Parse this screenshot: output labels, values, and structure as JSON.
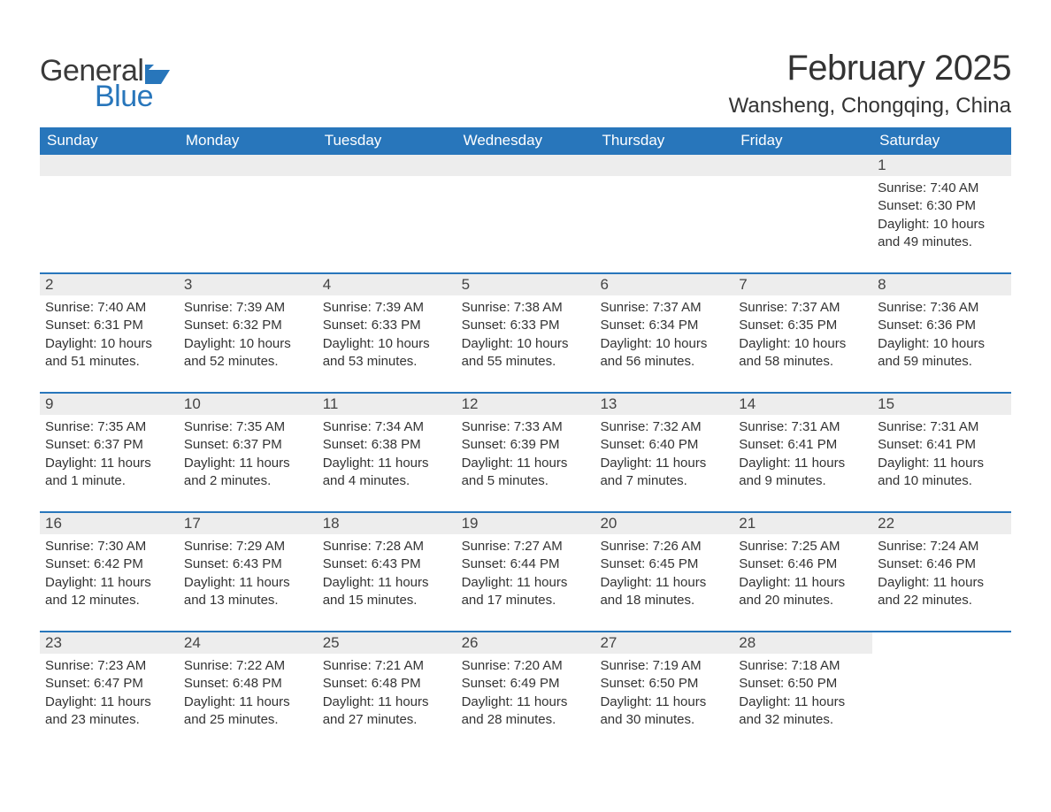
{
  "brand": {
    "word1": "General",
    "word2": "Blue",
    "accent_color": "#2876bb"
  },
  "header": {
    "month_title": "February 2025",
    "location": "Wansheng, Chongqing, China"
  },
  "colors": {
    "header_bg": "#2876bb",
    "header_text": "#ffffff",
    "daynum_bg": "#ededed",
    "row_border": "#2876bb",
    "body_text": "#333333"
  },
  "type": "calendar-table",
  "day_names": [
    "Sunday",
    "Monday",
    "Tuesday",
    "Wednesday",
    "Thursday",
    "Friday",
    "Saturday"
  ],
  "weeks": [
    [
      {
        "day": "",
        "sunrise": "",
        "sunset": "",
        "daylight": ""
      },
      {
        "day": "",
        "sunrise": "",
        "sunset": "",
        "daylight": ""
      },
      {
        "day": "",
        "sunrise": "",
        "sunset": "",
        "daylight": ""
      },
      {
        "day": "",
        "sunrise": "",
        "sunset": "",
        "daylight": ""
      },
      {
        "day": "",
        "sunrise": "",
        "sunset": "",
        "daylight": ""
      },
      {
        "day": "",
        "sunrise": "",
        "sunset": "",
        "daylight": ""
      },
      {
        "day": "1",
        "sunrise": "Sunrise: 7:40 AM",
        "sunset": "Sunset: 6:30 PM",
        "daylight": "Daylight: 10 hours and 49 minutes."
      }
    ],
    [
      {
        "day": "2",
        "sunrise": "Sunrise: 7:40 AM",
        "sunset": "Sunset: 6:31 PM",
        "daylight": "Daylight: 10 hours and 51 minutes."
      },
      {
        "day": "3",
        "sunrise": "Sunrise: 7:39 AM",
        "sunset": "Sunset: 6:32 PM",
        "daylight": "Daylight: 10 hours and 52 minutes."
      },
      {
        "day": "4",
        "sunrise": "Sunrise: 7:39 AM",
        "sunset": "Sunset: 6:33 PM",
        "daylight": "Daylight: 10 hours and 53 minutes."
      },
      {
        "day": "5",
        "sunrise": "Sunrise: 7:38 AM",
        "sunset": "Sunset: 6:33 PM",
        "daylight": "Daylight: 10 hours and 55 minutes."
      },
      {
        "day": "6",
        "sunrise": "Sunrise: 7:37 AM",
        "sunset": "Sunset: 6:34 PM",
        "daylight": "Daylight: 10 hours and 56 minutes."
      },
      {
        "day": "7",
        "sunrise": "Sunrise: 7:37 AM",
        "sunset": "Sunset: 6:35 PM",
        "daylight": "Daylight: 10 hours and 58 minutes."
      },
      {
        "day": "8",
        "sunrise": "Sunrise: 7:36 AM",
        "sunset": "Sunset: 6:36 PM",
        "daylight": "Daylight: 10 hours and 59 minutes."
      }
    ],
    [
      {
        "day": "9",
        "sunrise": "Sunrise: 7:35 AM",
        "sunset": "Sunset: 6:37 PM",
        "daylight": "Daylight: 11 hours and 1 minute."
      },
      {
        "day": "10",
        "sunrise": "Sunrise: 7:35 AM",
        "sunset": "Sunset: 6:37 PM",
        "daylight": "Daylight: 11 hours and 2 minutes."
      },
      {
        "day": "11",
        "sunrise": "Sunrise: 7:34 AM",
        "sunset": "Sunset: 6:38 PM",
        "daylight": "Daylight: 11 hours and 4 minutes."
      },
      {
        "day": "12",
        "sunrise": "Sunrise: 7:33 AM",
        "sunset": "Sunset: 6:39 PM",
        "daylight": "Daylight: 11 hours and 5 minutes."
      },
      {
        "day": "13",
        "sunrise": "Sunrise: 7:32 AM",
        "sunset": "Sunset: 6:40 PM",
        "daylight": "Daylight: 11 hours and 7 minutes."
      },
      {
        "day": "14",
        "sunrise": "Sunrise: 7:31 AM",
        "sunset": "Sunset: 6:41 PM",
        "daylight": "Daylight: 11 hours and 9 minutes."
      },
      {
        "day": "15",
        "sunrise": "Sunrise: 7:31 AM",
        "sunset": "Sunset: 6:41 PM",
        "daylight": "Daylight: 11 hours and 10 minutes."
      }
    ],
    [
      {
        "day": "16",
        "sunrise": "Sunrise: 7:30 AM",
        "sunset": "Sunset: 6:42 PM",
        "daylight": "Daylight: 11 hours and 12 minutes."
      },
      {
        "day": "17",
        "sunrise": "Sunrise: 7:29 AM",
        "sunset": "Sunset: 6:43 PM",
        "daylight": "Daylight: 11 hours and 13 minutes."
      },
      {
        "day": "18",
        "sunrise": "Sunrise: 7:28 AM",
        "sunset": "Sunset: 6:43 PM",
        "daylight": "Daylight: 11 hours and 15 minutes."
      },
      {
        "day": "19",
        "sunrise": "Sunrise: 7:27 AM",
        "sunset": "Sunset: 6:44 PM",
        "daylight": "Daylight: 11 hours and 17 minutes."
      },
      {
        "day": "20",
        "sunrise": "Sunrise: 7:26 AM",
        "sunset": "Sunset: 6:45 PM",
        "daylight": "Daylight: 11 hours and 18 minutes."
      },
      {
        "day": "21",
        "sunrise": "Sunrise: 7:25 AM",
        "sunset": "Sunset: 6:46 PM",
        "daylight": "Daylight: 11 hours and 20 minutes."
      },
      {
        "day": "22",
        "sunrise": "Sunrise: 7:24 AM",
        "sunset": "Sunset: 6:46 PM",
        "daylight": "Daylight: 11 hours and 22 minutes."
      }
    ],
    [
      {
        "day": "23",
        "sunrise": "Sunrise: 7:23 AM",
        "sunset": "Sunset: 6:47 PM",
        "daylight": "Daylight: 11 hours and 23 minutes."
      },
      {
        "day": "24",
        "sunrise": "Sunrise: 7:22 AM",
        "sunset": "Sunset: 6:48 PM",
        "daylight": "Daylight: 11 hours and 25 minutes."
      },
      {
        "day": "25",
        "sunrise": "Sunrise: 7:21 AM",
        "sunset": "Sunset: 6:48 PM",
        "daylight": "Daylight: 11 hours and 27 minutes."
      },
      {
        "day": "26",
        "sunrise": "Sunrise: 7:20 AM",
        "sunset": "Sunset: 6:49 PM",
        "daylight": "Daylight: 11 hours and 28 minutes."
      },
      {
        "day": "27",
        "sunrise": "Sunrise: 7:19 AM",
        "sunset": "Sunset: 6:50 PM",
        "daylight": "Daylight: 11 hours and 30 minutes."
      },
      {
        "day": "28",
        "sunrise": "Sunrise: 7:18 AM",
        "sunset": "Sunset: 6:50 PM",
        "daylight": "Daylight: 11 hours and 32 minutes."
      },
      {
        "day": "",
        "sunrise": "",
        "sunset": "",
        "daylight": ""
      }
    ]
  ]
}
